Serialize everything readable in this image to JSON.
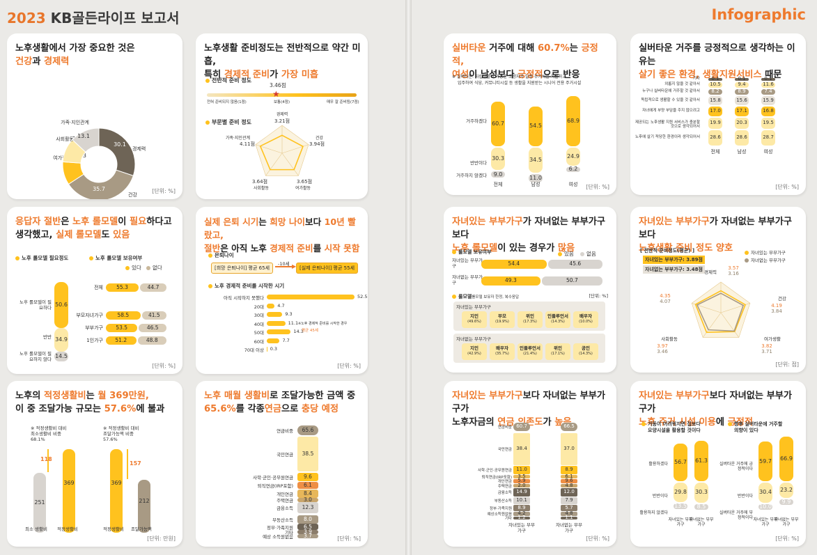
{
  "header": {
    "year": "2023",
    "title": "KB골든라이프 보고서",
    "right": "Infographic"
  },
  "c1": {
    "t1": "노후생활에서 가장 중요한 것은",
    "t2a": "건강",
    "t2b": "과 ",
    "t2c": "경제력",
    "slices": [
      {
        "label": "경제력",
        "value": 30.1
      },
      {
        "label": "건강",
        "value": 35.7
      },
      {
        "label": "여가활동",
        "value": 10.3
      },
      {
        "label": "사회활동",
        "value": 10.8
      },
      {
        "label": "가족·지인관계",
        "value": 13.1
      }
    ],
    "unit": "[단위: %]"
  },
  "c2": {
    "t1": "노후생활 준비정도는 전반적으로 약간 미흡,",
    "t2a": "특히 ",
    "t2b": "경제적 준비",
    "t2c": "가 ",
    "t2d": "가장 미흡",
    "s1": "전반적 준비 정도",
    "score": "3.46점",
    "scale_l": "전혀 준비되지 않음(1점)",
    "scale_m": "보통(4점)",
    "scale_r": "매우 잘 준비됨(7점)",
    "s2": "부문별 준비 정도",
    "radar": [
      {
        "label": "경제력",
        "value": "3.21점"
      },
      {
        "label": "건강",
        "value": "3.94점"
      },
      {
        "label": "여가활동",
        "value": "3.65점"
      },
      {
        "label": "사회활동",
        "value": "3.64점"
      },
      {
        "label": "가족·지인관계",
        "value": "4.11점"
      }
    ]
  },
  "c3": {
    "t1a": "응답자 절반",
    "t1b": "은 ",
    "t1c": "노후 롤모델",
    "t1d": "이 ",
    "t1e": "필요",
    "t1f": "하다고",
    "t2a": "생각했고, ",
    "t2b": "실제 롤모델",
    "t2c": "도 ",
    "t2d": "있음",
    "s1": "노후 롤모델 필요정도",
    "s2": "노후 롤모델 보유여부",
    "leg1": "있다",
    "leg2": "없다",
    "need": [
      {
        "label": "노후 롤모델이 필요하다",
        "value": "50.6"
      },
      {
        "label": "반반",
        "value": "34.9"
      },
      {
        "label": "노후 롤모델이 필요하지 않다",
        "value": "14.5"
      }
    ],
    "own": [
      {
        "label": "전체",
        "yes": "55.3",
        "no": "44.7"
      },
      {
        "label": "부모자녀가구",
        "yes": "58.5",
        "no": "41.5"
      },
      {
        "label": "부부가구",
        "yes": "53.5",
        "no": "46.5"
      },
      {
        "label": "1인가구",
        "yes": "51.2",
        "no": "48.8"
      }
    ],
    "unit": "[단위: %]"
  },
  "c4": {
    "t1a": "실제 은퇴 시기",
    "t1b": "는 ",
    "t1c": "희망 나이",
    "t1d": "보다 ",
    "t1e": "10년 빨랐고,",
    "t2a": "절반",
    "t2b": "은 아직 노후 ",
    "t2c": "경제적 준비",
    "t2d": "를 ",
    "t2e": "시작 못함",
    "s1": "은퇴나이",
    "box1": "[희망 은퇴나이] 평균 65세",
    "arrow": "-10세",
    "box2": "[실제 은퇴나이] 평균 55세",
    "s2": "노후 경제적 준비를 시작한 시기",
    "rows": [
      {
        "label": "아직 시작하지 못했다",
        "value": "52.5"
      },
      {
        "label": "20대",
        "value": "4.7"
      },
      {
        "label": "30대",
        "value": "9.3"
      },
      {
        "label": "40대",
        "value": "11.1"
      },
      {
        "label": "50대",
        "value": "14.3"
      },
      {
        "label": "60대",
        "value": "7.7"
      },
      {
        "label": "70대 이상",
        "value": "0.3"
      }
    ],
    "note1": "※노후 경제적 준비를 시작한 경우",
    "note2": "평균 45세",
    "unit": "[단위: %]"
  },
  "c5": {
    "t1a": "노후의 ",
    "t1b": "적정생활비",
    "t1c": "는 ",
    "t1d": "월 369만원,",
    "t2a": "이 중 조달가능 규모는 ",
    "t2b": "57.6%",
    "t2c": "에 불과",
    "n1a": "※ 적정생활비 대비",
    "n1b": "최소생활비 비중",
    "n1c": "68.1%",
    "n2a": "※ 적정생활비 대비",
    "n2b": "조달가능액 비중",
    "n2c": "57.6%",
    "diff1": "118",
    "diff2": "157",
    "v1": "251",
    "v2": "369",
    "v3": "369",
    "v4": "212",
    "x1": "최소 생활비",
    "x2": "적정생활비",
    "x3": "적정생활비",
    "x4": "조달가능액",
    "unit": "[단위: 만원]"
  },
  "c6": {
    "t1a": "노후 매월 생활비",
    "t1b": "로 조달가능한 금액 중",
    "t2a": "65.6%",
    "t2b": "를 각종",
    "t2c": "연금",
    "t2d": "으로 ",
    "t2e": "충당 예정",
    "rows": [
      {
        "label": "연금비중",
        "value": "65.6"
      },
      {
        "label": "국민연금",
        "value": "38.5"
      },
      {
        "label": "사학·군인·공무원연금",
        "value": "9.6"
      },
      {
        "label": "퇴직연금(IRP포함)",
        "value": "6.1"
      },
      {
        "label": "개인연금",
        "value": "8.4"
      },
      {
        "label": "주택연금",
        "value": "3.0"
      },
      {
        "label": "금융소득",
        "value": "12.3"
      },
      {
        "label": "부동산소득",
        "value": "8.0"
      },
      {
        "label": "정부·가족지원",
        "value": "6.5"
      },
      {
        "label": "기타",
        "value": "3.9"
      },
      {
        "label": "예상 소득원없음",
        "value": "3.7"
      }
    ],
    "unit": "[단위: %]"
  },
  "c7": {
    "t1a": "실버타운",
    "t1b": " 거주에 대해 ",
    "t1c": "60.7%",
    "t1d": "는 ",
    "t1e": "긍정적,",
    "t2a": "여성",
    "t2b": "이 남성보다 ",
    "t2c": "긍정적",
    "t2d": "으로 반응",
    "note1": "※ 실버타운: 자립생활이 가능한 고령자가 일정 주거비를 지불하고",
    "note2": "입주하여 식당, 커뮤니티시설 등 생활을 지원받는 시니어 전용 주거시설",
    "rows": [
      "거주하겠다",
      "반반이다",
      "거주하지 않겠다"
    ],
    "cols": [
      {
        "label": "전체",
        "v": [
          "60.7",
          "30.3",
          "9.0"
        ]
      },
      {
        "label": "남성",
        "v": [
          "54.5",
          "34.5",
          "11.0"
        ]
      },
      {
        "label": "여성",
        "v": [
          "68.9",
          "24.9",
          "6.2"
        ]
      }
    ],
    "unit": "[단위: %]"
  },
  "c8": {
    "t1": "실버타운 거주를 긍정적으로 생각하는 이유는",
    "t2a": "살기 좋은 환경, 생활지원서비스",
    "t2b": " 때문",
    "rows": [
      {
        "label": "기타",
        "v": [
          "0.1",
          "0.1",
          "0.1"
        ]
      },
      {
        "label": "외롭지 않을 것 같아서",
        "v": [
          "10.5",
          "9.4",
          "11.6"
        ]
      },
      {
        "label": "누구나 실버타운에 거주할 것 같아서",
        "v": [
          "8.2",
          "8.9",
          "7.4"
        ]
      },
      {
        "label": "독립적으로 생활할 수 있을 것 같아서",
        "v": [
          "15.8",
          "15.6",
          "15.9"
        ]
      },
      {
        "label": "자녀에게 부양 부담을 주지 않으려고",
        "v": [
          "17.0",
          "17.1",
          "16.8"
        ]
      },
      {
        "label": "제공되는 노후생활 지원 서비스가 충분할 것으로 생각되어서",
        "v": [
          "19.9",
          "20.3",
          "19.5"
        ]
      },
      {
        "label": "노후에 살기 적당한 환경이라 생각되어서",
        "v": [
          "28.6",
          "28.6",
          "28.7"
        ]
      }
    ],
    "cols": [
      "전체",
      "남성",
      "여성"
    ],
    "unit": "[단위: %]"
  },
  "c9": {
    "t1a": "자녀있는 부부가구",
    "t1b": "가 자녀없는 부부가구보다",
    "t2a": "노후 롤모델",
    "t2b": "이 있는 경우가 ",
    "t2c": "많음",
    "s1": "롤모델 보유여부",
    "leg1": "있음",
    "leg2": "없음",
    "rows": [
      {
        "label": "자녀있는 부부가구",
        "yes": "54.4",
        "no": "45.6"
      },
      {
        "label": "자녀없는 부부가구",
        "yes": "49.3",
        "no": "50.7"
      }
    ],
    "unit": "[단위: %]",
    "s2": "롤모델",
    "s2b": "롤모델 보유자 한정, 복수응답",
    "g1": "자녀있는 부부가구",
    "g1items": [
      {
        "n": "지인",
        "p": "(49.6%)"
      },
      {
        "n": "부모",
        "p": "(19.9%)"
      },
      {
        "n": "위인",
        "p": "(17.3%)"
      },
      {
        "n": "인플루언서",
        "p": "(14.3%)"
      },
      {
        "n": "배우자",
        "p": "(10.0%)"
      }
    ],
    "g2": "자녀없는 부부가구",
    "g2items": [
      {
        "n": "지인",
        "p": "(42.9%)"
      },
      {
        "n": "배우자",
        "p": "(35.7%)"
      },
      {
        "n": "인플루언서",
        "p": "(21.4%)"
      },
      {
        "n": "위인",
        "p": "(17.1%)"
      },
      {
        "n": "공인",
        "p": "(14.3%)"
      }
    ]
  },
  "c10": {
    "t1a": "자녀있는 부부가구",
    "t1b": "가 자녀없는 부부가구보다",
    "t2": "노후생활 준비 정도 양호",
    "box": "[ 전반적 준비정도(평균) ]",
    "b1": "자녀있는 부부가구: 3.89점",
    "b2": "자녀없는 부부가구: 3.48점",
    "leg1": "자녀있는 부부가구",
    "leg2": "자녀없는 부부가구",
    "axes": [
      {
        "label": "경제력",
        "a": "3.57",
        "b": "3.16"
      },
      {
        "label": "건강",
        "a": "4.19",
        "b": "3.84"
      },
      {
        "label": "여가생활",
        "a": "3.82",
        "b": "3.71"
      },
      {
        "label": "사회활동",
        "a": "3.97",
        "b": "3.46"
      },
      {
        "label": "",
        "a": "4.35",
        "b": "4.07"
      }
    ],
    "unit": "[단위: 점]"
  },
  "c11": {
    "t1a": "자녀있는 부부가구",
    "t1b": "보다 자녀없는 부부가구가",
    "t2a": "노후자금",
    "t2b": "의 ",
    "t2c": "연금 의존도",
    "t2d": "가 ",
    "t2e": "높음",
    "rows": [
      {
        "label": "연금비중",
        "a": "60.7",
        "b": "66.5"
      },
      {
        "label": "국민연금",
        "a": "38.4",
        "b": "37.0"
      },
      {
        "label": "사학·군인·공무원연금",
        "a": "11.0",
        "b": "8.9"
      },
      {
        "label": "퇴직연금(IRP포함)",
        "a": "3.5",
        "b": "6.1"
      },
      {
        "label": "개인연금",
        "a": "5.9",
        "b": "9.6"
      },
      {
        "label": "주택연금",
        "a": "2.0",
        "b": "4.8"
      },
      {
        "label": "금융소득",
        "a": "14.9",
        "b": "12.0"
      },
      {
        "label": "부동산소득",
        "a": "10.1",
        "b": "7.9"
      },
      {
        "label": "정부·가족지원",
        "a": "8.9",
        "b": "5.7"
      },
      {
        "label": "예상소득원없음",
        "a": "4.2",
        "b": "4.8"
      },
      {
        "label": "기타",
        "a": "1.2",
        "b": "1.1"
      }
    ],
    "cols": [
      "자녀있는 부부가구",
      "자녀없는 부부가구"
    ],
    "unit": "[단위: %]"
  },
  "c12": {
    "t1a": "자녀있는 부부가구",
    "t1b": "보다 자녀없는 부부가구가",
    "t2a": "노후 주거 시설 이용",
    "t2b": "에 ",
    "t2c": "긍정적",
    "s1a": "거동이 어려워지면 집보다",
    "s1b": "요양시설을 활용할 것이다",
    "s2a": "향후 실버타운에 거주할",
    "s2b": "의향이 있다",
    "l1": [
      "활용하겠다",
      "반반이다",
      "활용하지 않겠다"
    ],
    "l2": [
      "실버타운 거주에 긍정적이다",
      "반반이다",
      "실버타운 거주에 부정적이다"
    ],
    "g1": [
      [
        "56.7",
        "29.8",
        "13.5"
      ],
      [
        "61.3",
        "30.3",
        "8.5"
      ]
    ],
    "g2": [
      [
        "59.7",
        "30.4",
        "10.0"
      ],
      [
        "66.9",
        "23.2",
        "9.9"
      ]
    ],
    "cols": [
      "자녀있는 부부가구",
      "자녀없는 부부가구"
    ],
    "unit": "[단위: %]"
  },
  "colors": {
    "orange": "#ee7a2d",
    "yellow": "#ffc21e",
    "pale": "#fde9a6",
    "gray": "#d8d4cf",
    "brown": "#a89a84",
    "dark": "#6e6456"
  }
}
